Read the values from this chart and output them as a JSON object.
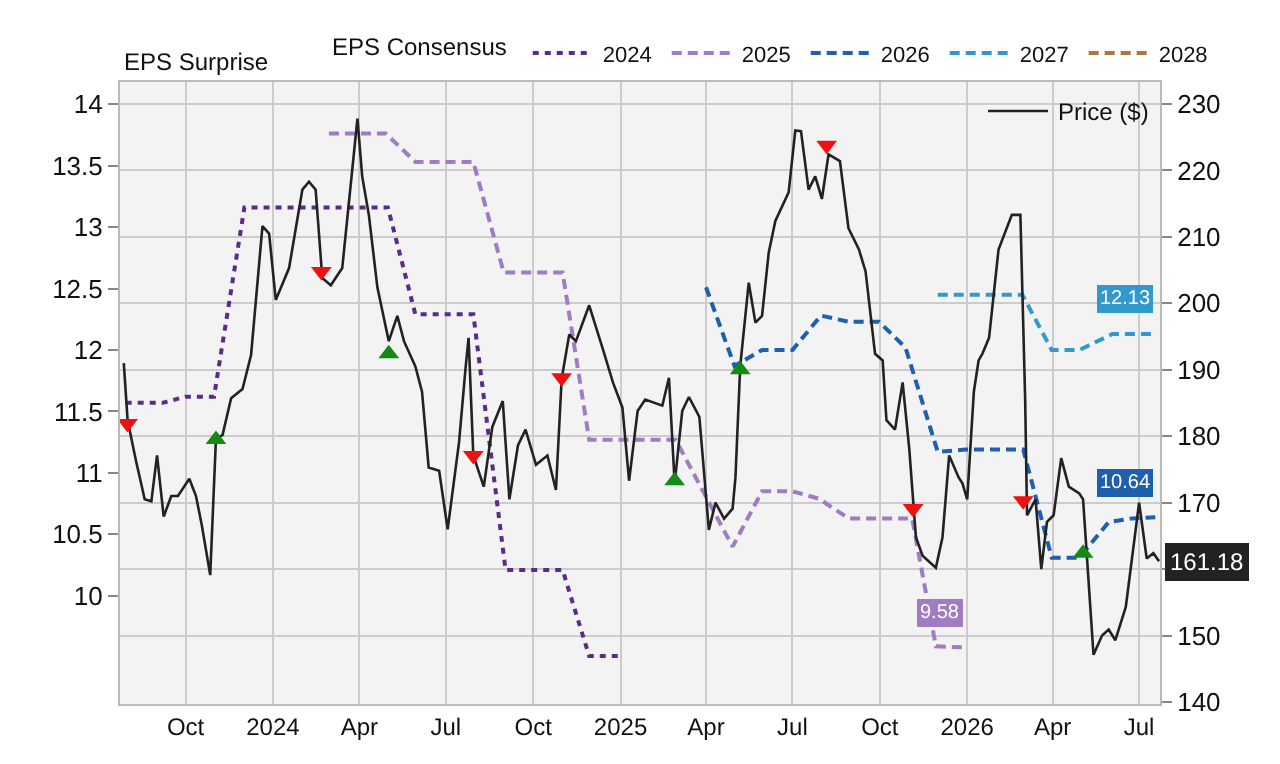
{
  "chart_data": {
    "type": "line",
    "legend": "top",
    "grid": true,
    "annotations": [
      "EPS Surprise"
    ],
    "legend_title": "EPS Consensus",
    "xlim": [
      "2023-07-24",
      "2026-07-23"
    ],
    "xticks": [
      {
        "value": "2023-10-01",
        "label": "Oct"
      },
      {
        "value": "2024-01-01",
        "label": "2024"
      },
      {
        "value": "2024-04-01",
        "label": "Apr"
      },
      {
        "value": "2024-07-01",
        "label": "Jul"
      },
      {
        "value": "2024-10-01",
        "label": "Oct"
      },
      {
        "value": "2025-01-01",
        "label": "2025"
      },
      {
        "value": "2025-04-01",
        "label": "Apr"
      },
      {
        "value": "2025-07-01",
        "label": "Jul"
      },
      {
        "value": "2025-10-01",
        "label": "Oct"
      },
      {
        "value": "2026-01-01",
        "label": "2026"
      },
      {
        "value": "2026-04-01",
        "label": "Apr"
      },
      {
        "value": "2026-07-01",
        "label": "Jul"
      }
    ],
    "ylim": [
      9.12,
      14.18
    ],
    "yticks": [
      10,
      10.5,
      11,
      11.5,
      12,
      12.5,
      13,
      13.5,
      14
    ],
    "y2lim": [
      139.7,
      233.3
    ],
    "y2ticks": [
      140,
      150,
      {
        "value": 160,
        "label": null
      },
      170,
      180,
      190,
      200,
      210,
      220,
      230
    ],
    "series": [
      {
        "name": "2024",
        "color": "#5b2c83",
        "line_style": "dotted",
        "x": [
          "2023-07-30",
          "2023-09-07",
          "2023-10-01",
          "2023-10-31",
          "2023-12-02",
          "2024-05-01",
          "2024-05-30",
          "2024-07-30",
          "2024-09-02",
          "2024-11-01",
          "2024-11-29",
          "2024-12-31"
        ],
        "values": [
          11.57,
          11.57,
          11.62,
          11.62,
          13.16,
          13.16,
          12.29,
          12.29,
          10.21,
          10.21,
          9.51,
          9.51
        ]
      },
      {
        "name": "2025",
        "color": "#a07cc0",
        "line_style": "dashed",
        "x": [
          "2024-02-29",
          "2024-04-29",
          "2024-05-30",
          "2024-07-30",
          "2024-08-31",
          "2024-11-01",
          "2024-11-29",
          "2025-02-28",
          "2025-04-29",
          "2025-05-30",
          "2025-07-01",
          "2025-07-29",
          "2025-08-29",
          "2025-11-04",
          "2025-11-29",
          "2025-12-30"
        ],
        "values": [
          13.76,
          13.76,
          13.53,
          13.53,
          12.63,
          12.63,
          11.27,
          11.27,
          10.4,
          10.85,
          10.85,
          10.79,
          10.63,
          10.63,
          9.59,
          9.58
        ],
        "value_labels": [
          null,
          null,
          null,
          null,
          null,
          null,
          null,
          null,
          null,
          null,
          null,
          null,
          null,
          null,
          null,
          "9.58"
        ]
      },
      {
        "name": "2026",
        "color": "#1f5fae",
        "line_style": "dashed",
        "x": [
          "2025-04-01",
          "2025-05-01",
          "2025-05-30",
          "2025-07-01",
          "2025-07-31",
          "2025-08-29",
          "2025-09-30",
          "2025-10-28",
          "2025-12-01",
          "2025-12-30",
          "2026-03-01",
          "2026-03-31",
          "2026-04-29",
          "2026-05-30",
          "2026-06-24",
          "2026-07-18"
        ],
        "values": [
          12.51,
          11.87,
          12.0,
          12.0,
          12.28,
          12.23,
          12.23,
          12.02,
          11.17,
          11.19,
          11.19,
          10.31,
          10.31,
          10.6,
          10.63,
          10.64
        ],
        "value_labels": [
          null,
          null,
          null,
          null,
          null,
          null,
          null,
          null,
          null,
          null,
          null,
          null,
          null,
          null,
          null,
          "10.64"
        ]
      },
      {
        "name": "2027",
        "color": "#3399cc",
        "line_style": "dashed",
        "x": [
          "2025-12-01",
          "2026-02-28",
          "2026-03-31",
          "2026-04-29",
          "2026-06-03",
          "2026-07-18"
        ],
        "values": [
          12.45,
          12.45,
          12.0,
          12.0,
          12.13,
          12.13
        ],
        "value_labels": [
          null,
          null,
          null,
          null,
          null,
          "12.13"
        ]
      },
      {
        "name": "2028",
        "color": "#a67c3c",
        "line_style": "dashed"
      },
      {
        "name": "Price ($)",
        "color": "#222222",
        "axis": "y2",
        "line_style": "solid",
        "x": [
          "2023-07-28",
          "2023-08-01",
          "2023-08-10",
          "2023-08-19",
          "2023-08-26",
          "2023-09-01",
          "2023-09-08",
          "2023-09-16",
          "2023-09-23",
          "2023-10-05",
          "2023-10-12",
          "2023-10-18",
          "2023-10-27",
          "2023-11-02",
          "2023-11-09",
          "2023-11-18",
          "2023-11-30",
          "2023-12-09",
          "2023-12-21",
          "2023-12-28",
          "2024-01-04",
          "2024-01-18",
          "2024-02-01",
          "2024-02-08",
          "2024-02-15",
          "2024-02-22",
          "2024-03-02",
          "2024-03-14",
          "2024-03-30",
          "2024-04-04",
          "2024-04-11",
          "2024-04-20",
          "2024-05-02",
          "2024-05-11",
          "2024-05-18",
          "2024-05-30",
          "2024-06-06",
          "2024-06-13",
          "2024-06-24",
          "2024-07-03",
          "2024-07-15",
          "2024-07-22",
          "2024-07-25",
          "2024-07-30",
          "2024-08-10",
          "2024-08-19",
          "2024-08-30",
          "2024-09-06",
          "2024-09-15",
          "2024-09-23",
          "2024-10-04",
          "2024-10-16",
          "2024-10-25",
          "2024-10-31",
          "2024-11-08",
          "2024-11-15",
          "2024-11-29",
          "2024-12-13",
          "2024-12-24",
          "2025-01-03",
          "2025-01-10",
          "2025-01-19",
          "2025-01-27",
          "2025-02-14",
          "2025-02-21",
          "2025-02-27",
          "2025-03-07",
          "2025-03-14",
          "2025-03-25",
          "2025-04-04",
          "2025-04-11",
          "2025-04-20",
          "2025-04-29",
          "2025-05-02",
          "2025-05-07",
          "2025-05-16",
          "2025-05-23",
          "2025-05-30",
          "2025-06-06",
          "2025-06-13",
          "2025-06-27",
          "2025-07-04",
          "2025-07-10",
          "2025-07-18",
          "2025-07-25",
          "2025-08-01",
          "2025-08-08",
          "2025-08-20",
          "2025-08-29",
          "2025-09-09",
          "2025-09-16",
          "2025-09-26",
          "2025-10-04",
          "2025-10-08",
          "2025-10-17",
          "2025-10-25",
          "2025-11-01",
          "2025-11-08",
          "2025-11-15",
          "2025-11-29",
          "2025-12-06",
          "2025-12-13",
          "2025-12-23",
          "2025-12-27",
          "2026-01-01",
          "2026-01-08",
          "2026-01-13",
          "2026-01-17",
          "2026-01-24",
          "2026-02-03",
          "2026-02-17",
          "2026-02-26",
          "2026-03-03",
          "2026-03-05",
          "2026-03-14",
          "2026-03-20",
          "2026-03-26",
          "2026-04-02",
          "2026-04-10",
          "2026-04-18",
          "2026-04-29",
          "2026-05-03",
          "2026-05-14",
          "2026-05-23",
          "2026-05-30",
          "2026-06-06",
          "2026-06-17",
          "2026-07-01",
          "2026-07-09",
          "2026-07-16",
          "2026-07-22"
        ],
        "values": [
          191.0,
          182.4,
          176.2,
          170.5,
          170.2,
          177.1,
          167.9,
          171.0,
          171.0,
          173.6,
          171.0,
          166.7,
          159.1,
          179.5,
          180.2,
          185.7,
          187.1,
          192.2,
          211.6,
          210.5,
          200.5,
          205.3,
          217.1,
          218.3,
          217.1,
          203.8,
          202.7,
          205.3,
          227.8,
          219.1,
          213.3,
          202.4,
          194.3,
          198.1,
          194.3,
          190.5,
          186.7,
          175.3,
          174.8,
          166.0,
          179.1,
          190.5,
          194.8,
          177.1,
          172.4,
          181.4,
          185.3,
          170.5,
          178.6,
          181.0,
          175.7,
          177.1,
          171.9,
          188.6,
          195.3,
          194.3,
          199.7,
          193.3,
          188.1,
          184.3,
          173.3,
          183.8,
          185.5,
          184.6,
          188.8,
          172.9,
          183.8,
          185.9,
          182.9,
          165.9,
          170.0,
          167.6,
          169.1,
          173.8,
          190.5,
          203.1,
          197.1,
          198.1,
          207.6,
          212.4,
          216.7,
          226.0,
          225.9,
          217.1,
          219.1,
          215.7,
          222.4,
          221.4,
          211.3,
          208.1,
          204.8,
          192.4,
          191.4,
          182.4,
          181.0,
          188.1,
          178.1,
          164.8,
          162.0,
          160.2,
          164.8,
          177.1,
          173.8,
          172.9,
          170.5,
          186.7,
          191.4,
          192.4,
          194.8,
          208.1,
          213.3,
          213.3,
          185.7,
          168.1,
          170.5,
          160.0,
          167.1,
          168.1,
          176.7,
          172.4,
          171.4,
          170.5,
          147.1,
          150.0,
          150.9,
          149.3,
          154.3,
          170.0,
          161.6,
          162.4,
          161.18
        ],
        "value_labels": [
          null,
          null,
          null,
          null,
          null,
          null,
          null,
          null,
          null,
          null,
          null,
          null,
          null,
          null,
          null,
          null,
          null,
          null,
          null,
          null,
          null,
          null,
          null,
          null,
          null,
          null,
          null,
          null,
          null,
          null,
          null,
          null,
          null,
          null,
          null,
          null,
          null,
          null,
          null,
          null,
          null,
          null,
          null,
          null,
          null,
          null,
          null,
          null,
          null,
          null,
          null,
          null,
          null,
          null,
          null,
          null,
          null,
          null,
          null,
          null,
          null,
          null,
          null,
          null,
          null,
          null,
          null,
          null,
          null,
          null,
          null,
          null,
          null,
          null,
          null,
          null,
          null,
          null,
          null,
          null,
          null,
          null,
          null,
          null,
          null,
          null,
          null,
          null,
          null,
          null,
          null,
          null,
          null,
          null,
          null,
          null,
          null,
          null,
          null,
          null,
          null,
          null,
          null,
          null,
          null,
          null,
          null,
          null,
          null,
          null,
          null,
          null,
          null,
          null,
          null,
          null,
          null,
          null,
          null,
          null,
          null,
          null,
          null,
          null,
          null,
          null,
          null,
          null,
          null,
          null,
          "161.18"
        ]
      },
      {
        "type": "scatter",
        "marker": "triangle",
        "color": "#138a13",
        "axis": "y2",
        "x": [
          "2023-11-02",
          "2024-05-02",
          "2025-02-27",
          "2025-05-07",
          "2026-05-03"
        ],
        "values": [
          179.5,
          192.4,
          173.3,
          190.0,
          162.4
        ]
      },
      {
        "type": "scatter",
        "marker": "triangle",
        "color": "#ee1111",
        "axis": "y2",
        "x": [
          "2023-08-01",
          "2024-02-21",
          "2024-07-30",
          "2024-10-31",
          "2025-08-06",
          "2025-11-05",
          "2026-03-01"
        ],
        "values": [
          181.9,
          204.8,
          177.1,
          188.8,
          223.8,
          169.1,
          170.3
        ]
      }
    ]
  }
}
